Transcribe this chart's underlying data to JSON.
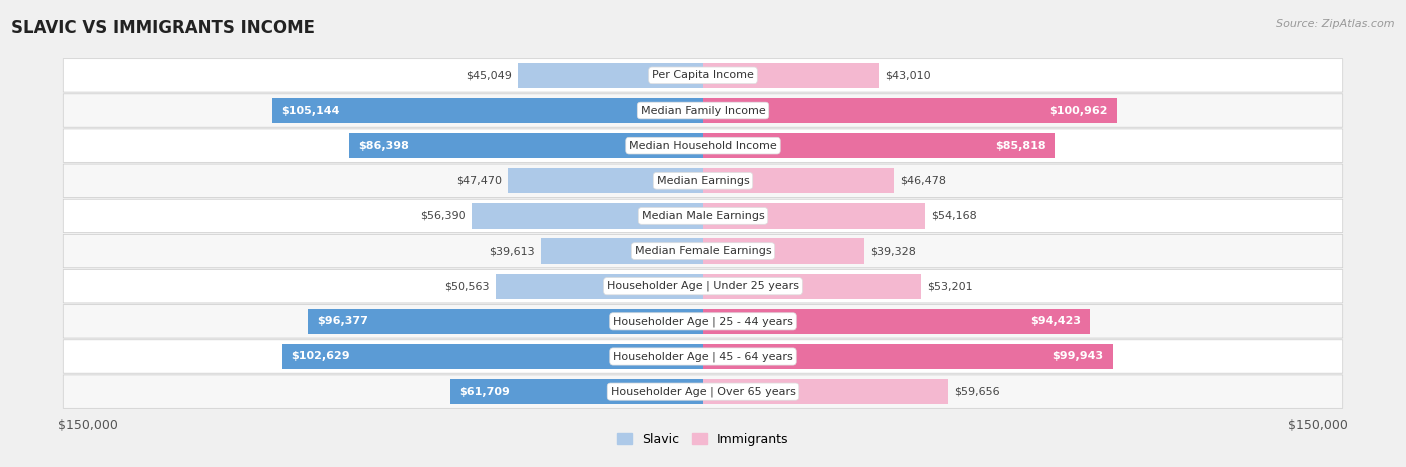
{
  "title": "SLAVIC VS IMMIGRANTS INCOME",
  "source": "Source: ZipAtlas.com",
  "categories": [
    "Per Capita Income",
    "Median Family Income",
    "Median Household Income",
    "Median Earnings",
    "Median Male Earnings",
    "Median Female Earnings",
    "Householder Age | Under 25 years",
    "Householder Age | 25 - 44 years",
    "Householder Age | 45 - 64 years",
    "Householder Age | Over 65 years"
  ],
  "slavic_values": [
    45049,
    105144,
    86398,
    47470,
    56390,
    39613,
    50563,
    96377,
    102629,
    61709
  ],
  "immigrant_values": [
    43010,
    100962,
    85818,
    46478,
    54168,
    39328,
    53201,
    94423,
    99943,
    59656
  ],
  "slavic_labels": [
    "$45,049",
    "$105,144",
    "$86,398",
    "$47,470",
    "$56,390",
    "$39,613",
    "$50,563",
    "$96,377",
    "$102,629",
    "$61,709"
  ],
  "immigrant_labels": [
    "$43,010",
    "$100,962",
    "$85,818",
    "$46,478",
    "$54,168",
    "$39,328",
    "$53,201",
    "$94,423",
    "$99,943",
    "$59,656"
  ],
  "slavic_color_light": "#adc9e8",
  "slavic_color_dark": "#5b9bd5",
  "immigrant_color_light": "#f4b8d0",
  "immigrant_color_dark": "#e96fa0",
  "slavic_threshold": 60000,
  "immigrant_threshold": 60000,
  "max_value": 150000,
  "background_color": "#f0f0f0",
  "row_bg_even": "#ffffff",
  "row_bg_odd": "#f7f7f7",
  "title_fontsize": 12,
  "bar_height": 0.72,
  "legend_slavic": "Slavic",
  "legend_immigrants": "Immigrants"
}
